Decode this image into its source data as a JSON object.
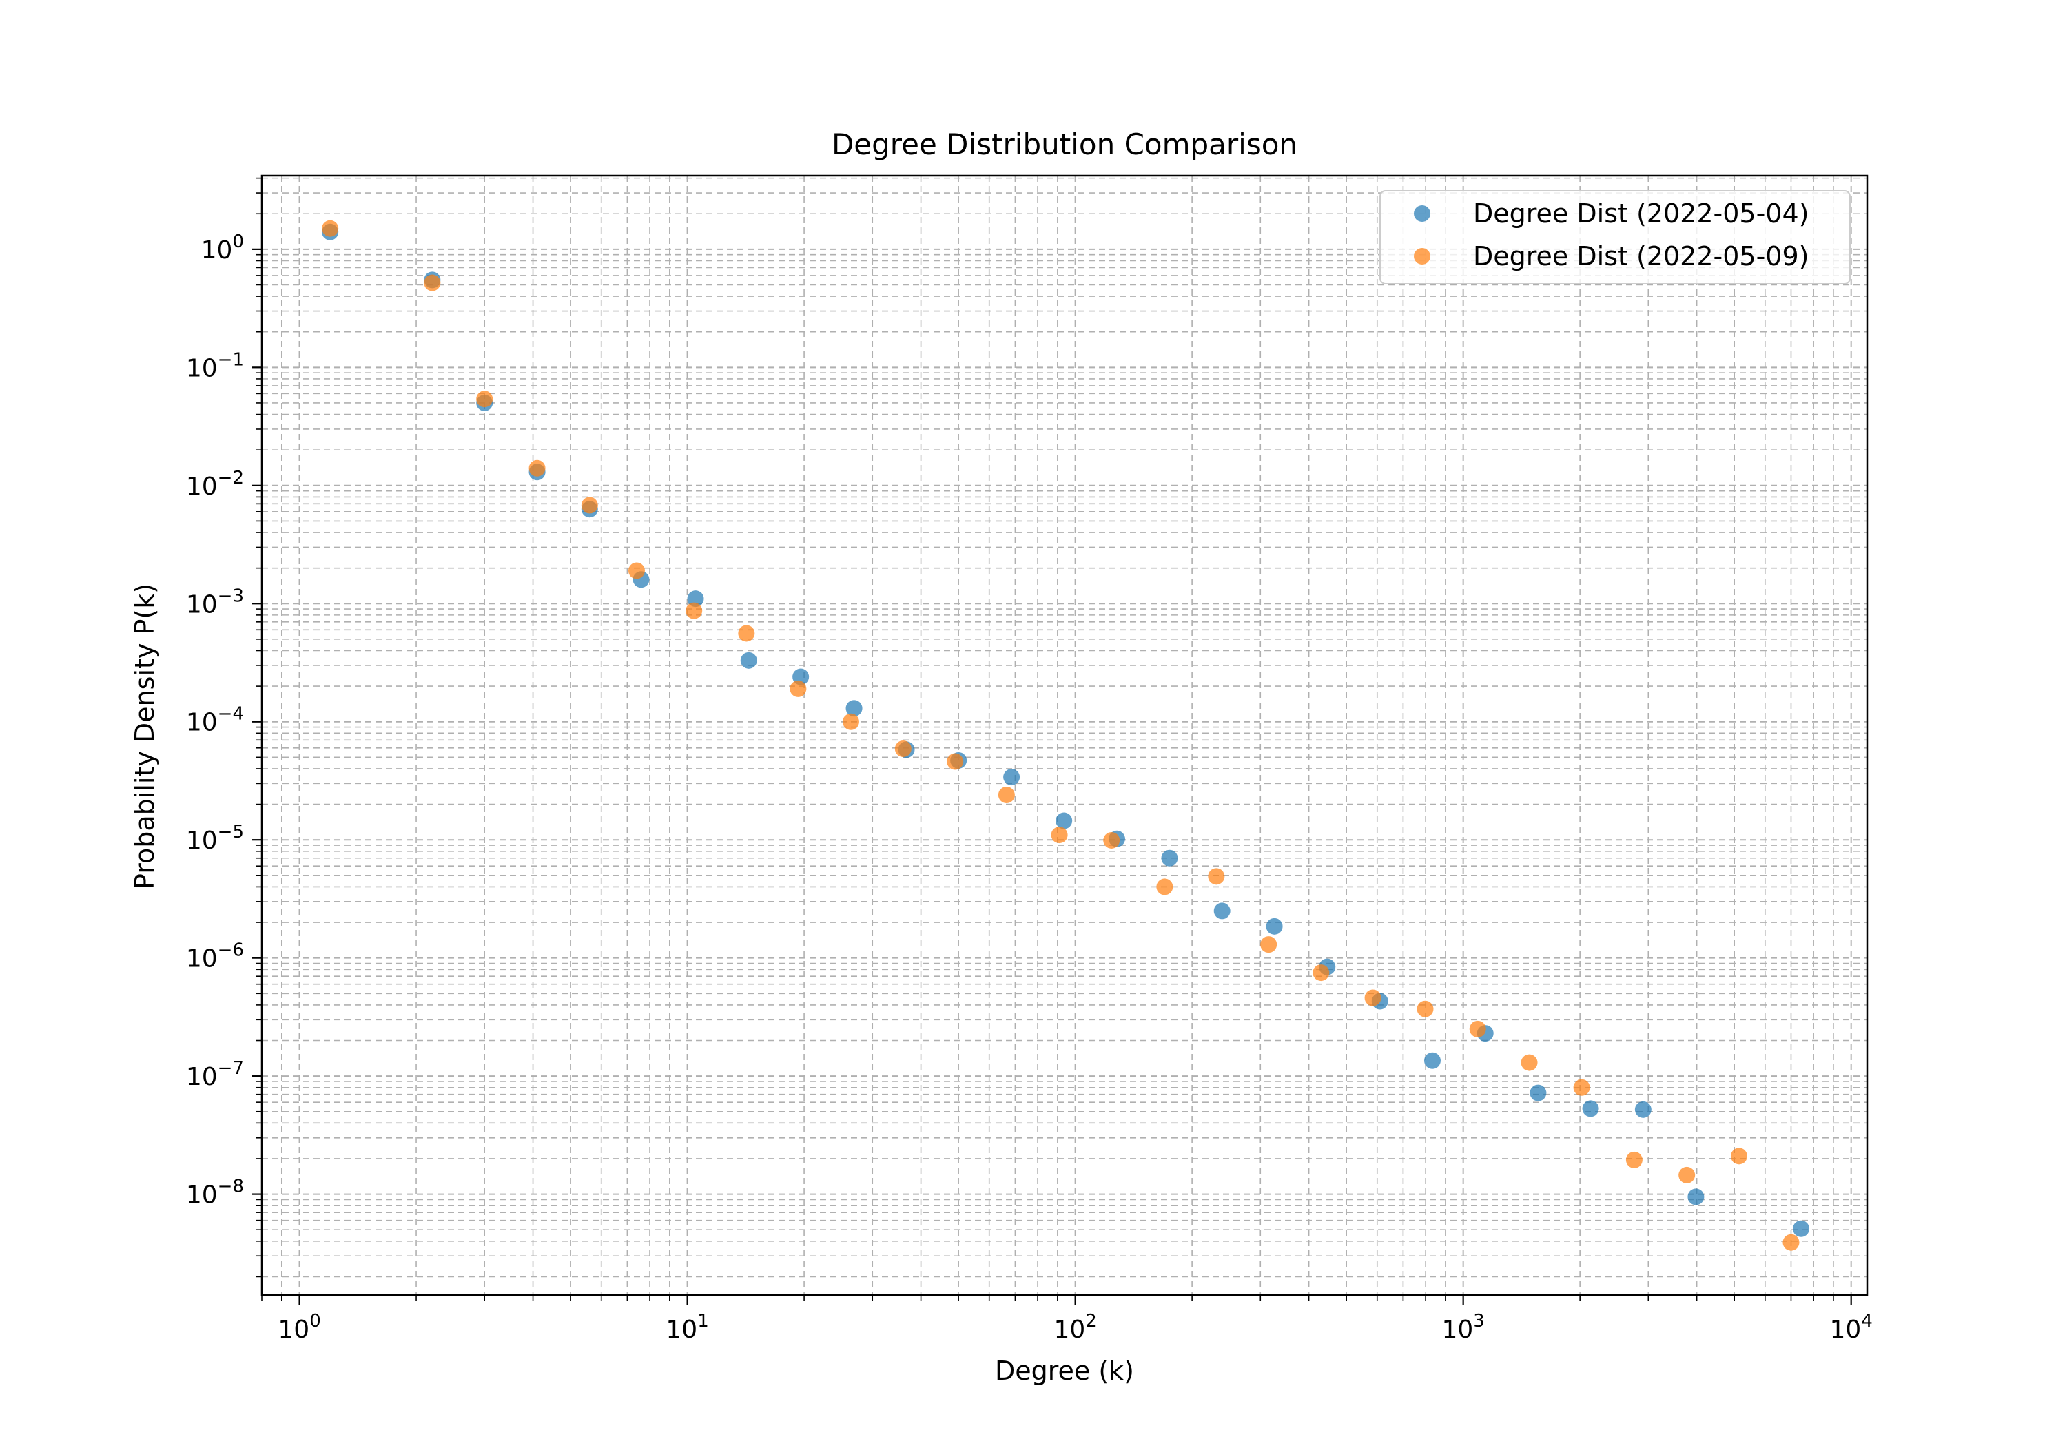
{
  "chart_data": {
    "type": "scatter",
    "title": "Degree Distribution Comparison",
    "xlabel": "Degree (k)",
    "ylabel": "Probability Density P(k)",
    "xscale": "log",
    "yscale": "log",
    "xlim": [
      0.8,
      11000
    ],
    "ylim": [
      1.4e-09,
      4.2
    ],
    "grid": true,
    "grid_style": "dashed, major and minor",
    "legend_position": "top-right",
    "x_ticks": [
      {
        "value": 1,
        "base": "10",
        "exp": "0"
      },
      {
        "value": 10,
        "base": "10",
        "exp": "1"
      },
      {
        "value": 100,
        "base": "10",
        "exp": "2"
      },
      {
        "value": 1000,
        "base": "10",
        "exp": "3"
      },
      {
        "value": 10000,
        "base": "10",
        "exp": "4"
      }
    ],
    "y_ticks": [
      {
        "value": 1e-08,
        "base": "10",
        "exp": "−8"
      },
      {
        "value": 1e-07,
        "base": "10",
        "exp": "−7"
      },
      {
        "value": 1e-06,
        "base": "10",
        "exp": "−6"
      },
      {
        "value": 1e-05,
        "base": "10",
        "exp": "−5"
      },
      {
        "value": 0.0001,
        "base": "10",
        "exp": "−4"
      },
      {
        "value": 0.001,
        "base": "10",
        "exp": "−3"
      },
      {
        "value": 0.01,
        "base": "10",
        "exp": "−2"
      },
      {
        "value": 0.1,
        "base": "10",
        "exp": "−1"
      },
      {
        "value": 1,
        "base": "10",
        "exp": "0"
      }
    ],
    "series": [
      {
        "name": "Degree Dist (2022-05-04)",
        "color": "#1f77b4",
        "points": [
          [
            1.2,
            1.4
          ],
          [
            2.2,
            0.55
          ],
          [
            3.0,
            0.05
          ],
          [
            4.1,
            0.013
          ],
          [
            5.6,
            0.0063
          ],
          [
            7.6,
            0.0016
          ],
          [
            10.5,
            0.0011
          ],
          [
            14.4,
            0.00033
          ],
          [
            19.6,
            0.00024
          ],
          [
            26.9,
            0.00013
          ],
          [
            36.7,
            5.8e-05
          ],
          [
            50.0,
            4.7e-05
          ],
          [
            68.5,
            3.4e-05
          ],
          [
            93.5,
            1.45e-05
          ],
          [
            128,
            1.02e-05
          ],
          [
            175,
            7e-06
          ],
          [
            239,
            2.5e-06
          ],
          [
            326,
            1.85e-06
          ],
          [
            446,
            8.4e-07
          ],
          [
            610,
            4.3e-07
          ],
          [
            833,
            1.35e-07
          ],
          [
            1140,
            2.3e-07
          ],
          [
            1560,
            7.2e-08
          ],
          [
            2130,
            5.3e-08
          ],
          [
            2910,
            5.2e-08
          ],
          [
            3980,
            9.5e-09
          ],
          [
            7430,
            5.1e-09
          ]
        ]
      },
      {
        "name": "Degree Dist (2022-05-09)",
        "color": "#ff7f0e",
        "points": [
          [
            1.2,
            1.5
          ],
          [
            2.2,
            0.52
          ],
          [
            3.0,
            0.054
          ],
          [
            4.1,
            0.014
          ],
          [
            5.6,
            0.0068
          ],
          [
            7.4,
            0.0019
          ],
          [
            10.4,
            0.00087
          ],
          [
            14.2,
            0.00056
          ],
          [
            19.3,
            0.00019
          ],
          [
            26.4,
            0.0001
          ],
          [
            36.0,
            5.9e-05
          ],
          [
            49.0,
            4.6e-05
          ],
          [
            66.5,
            2.4e-05
          ],
          [
            91.0,
            1.1e-05
          ],
          [
            124,
            9.9e-06
          ],
          [
            170,
            4e-06
          ],
          [
            231,
            4.9e-06
          ],
          [
            315,
            1.3e-06
          ],
          [
            430,
            7.5e-07
          ],
          [
            585,
            4.6e-07
          ],
          [
            798,
            3.7e-07
          ],
          [
            1090,
            2.5e-07
          ],
          [
            1480,
            1.3e-07
          ],
          [
            2020,
            8e-08
          ],
          [
            2760,
            1.95e-08
          ],
          [
            3770,
            1.45e-08
          ],
          [
            5140,
            2.1e-08
          ],
          [
            7000,
            3.9e-09
          ]
        ]
      }
    ]
  }
}
